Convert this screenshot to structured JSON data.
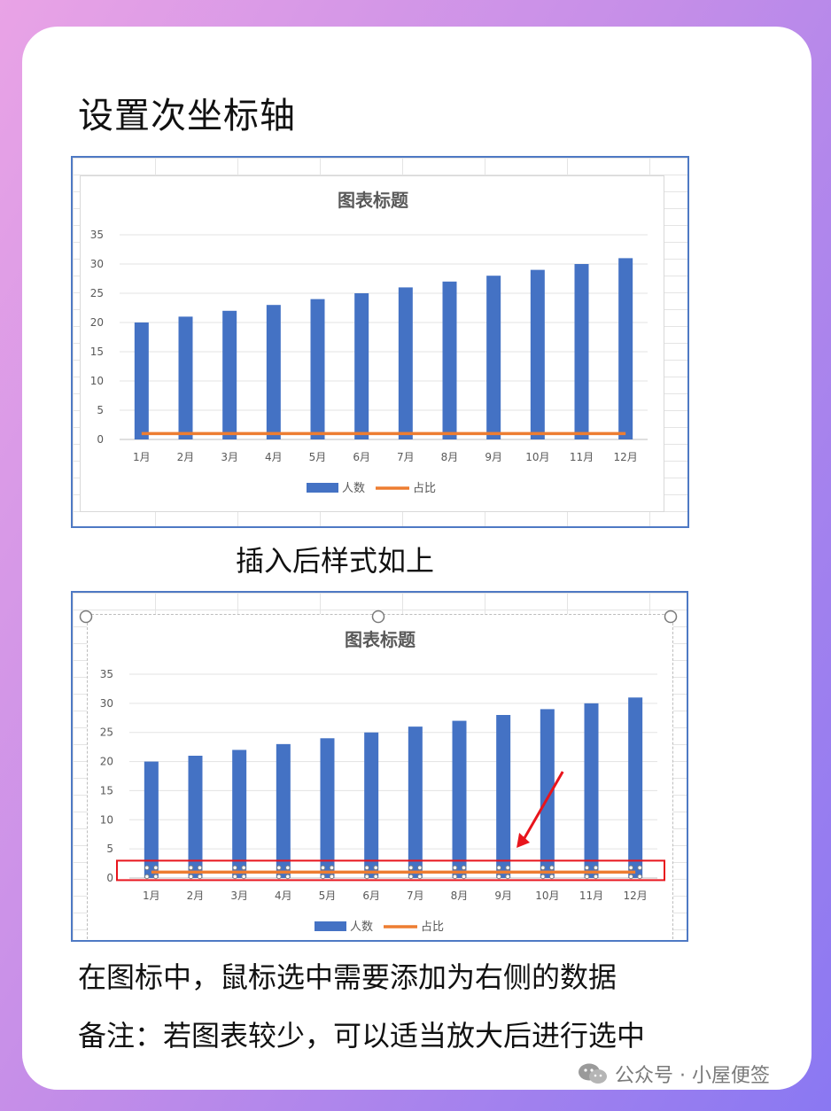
{
  "page": {
    "title": "设置次坐标轴",
    "caption_after_insert": "插入后样式如上",
    "caption_select": "在图标中，鼠标选中需要添加为右侧的数据",
    "caption_note": "备注：若图表较少，可以适当放大后进行选中",
    "watermark": "公众号 · 小屋便签"
  },
  "colors": {
    "bar": "#4472c4",
    "line": "#ed7d31",
    "highlight": "#e8141c",
    "arrow": "#e8141c"
  },
  "chart_data": [
    {
      "type": "bar",
      "title": "图表标题",
      "categories": [
        "1月",
        "2月",
        "3月",
        "4月",
        "5月",
        "6月",
        "7月",
        "8月",
        "9月",
        "10月",
        "11月",
        "12月"
      ],
      "series": [
        {
          "name": "人数",
          "type": "bar",
          "values": [
            20,
            21,
            22,
            23,
            24,
            25,
            26,
            27,
            28,
            29,
            30,
            31
          ]
        },
        {
          "name": "占比",
          "type": "line",
          "values": [
            1,
            1,
            1,
            1,
            1,
            1,
            1,
            1,
            1,
            1,
            1,
            1
          ]
        }
      ],
      "yticks": [
        "0",
        "5",
        "10",
        "15",
        "20",
        "25",
        "30",
        "35"
      ],
      "ylim": [
        0,
        35
      ],
      "grid": true,
      "legend": "bottom"
    },
    {
      "type": "bar",
      "title": "图表标题",
      "categories": [
        "1月",
        "2月",
        "3月",
        "4月",
        "5月",
        "6月",
        "7月",
        "8月",
        "9月",
        "10月",
        "11月",
        "12月"
      ],
      "series": [
        {
          "name": "人数",
          "type": "bar",
          "values": [
            20,
            21,
            22,
            23,
            24,
            25,
            26,
            27,
            28,
            29,
            30,
            31
          ]
        },
        {
          "name": "占比",
          "type": "line",
          "values": [
            1,
            1,
            1,
            1,
            1,
            1,
            1,
            1,
            1,
            1,
            1,
            1
          ]
        }
      ],
      "yticks": [
        "0",
        "5",
        "10",
        "15",
        "20",
        "25",
        "30",
        "35"
      ],
      "ylim": [
        0,
        35
      ],
      "grid": true,
      "legend": "bottom",
      "selected_series": "占比"
    }
  ]
}
